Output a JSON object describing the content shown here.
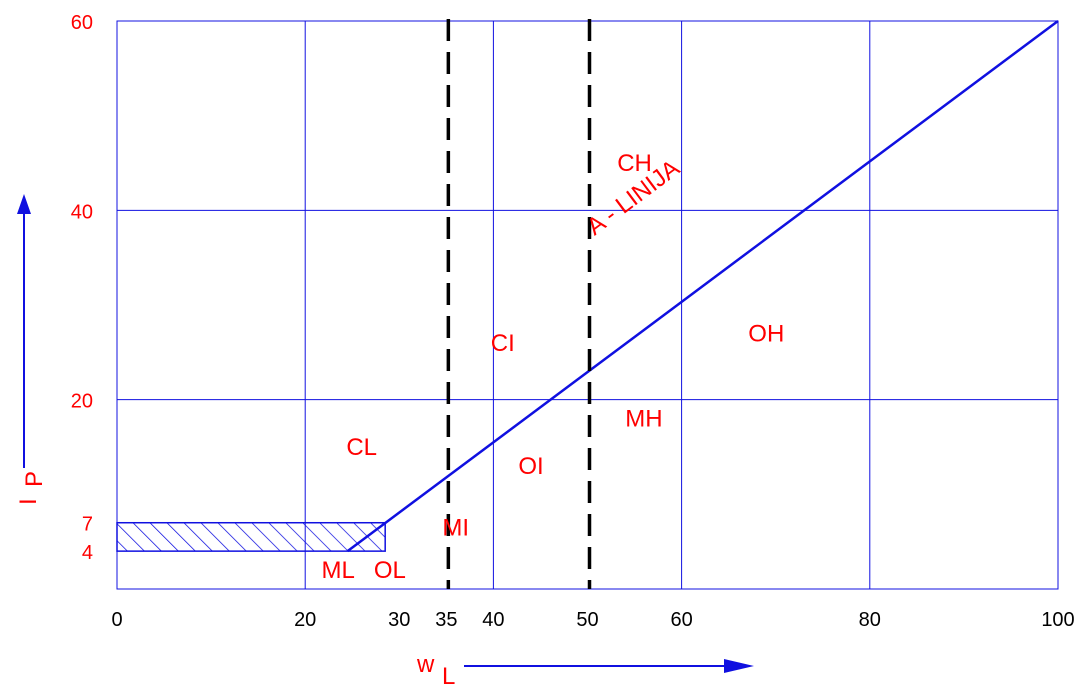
{
  "chart_data": {
    "type": "line",
    "title": "",
    "xlabel": "w",
    "xlabel_sub": "L",
    "ylabel": "I",
    "ylabel_sub": "P",
    "xlim": [
      0,
      100
    ],
    "ylim": [
      0,
      60
    ],
    "grid": true,
    "x_gridlines": [
      0,
      20,
      40,
      60,
      80,
      100
    ],
    "y_gridlines": [
      20,
      40,
      60
    ],
    "x_ticks": [
      {
        "value": 0,
        "label": "0"
      },
      {
        "value": 20,
        "label": "20"
      },
      {
        "value": 30,
        "label": "30"
      },
      {
        "value": 35,
        "label": "35"
      },
      {
        "value": 40,
        "label": "40"
      },
      {
        "value": 50,
        "label": "50"
      },
      {
        "value": 60,
        "label": "60"
      },
      {
        "value": 80,
        "label": "80"
      },
      {
        "value": 100,
        "label": "100"
      }
    ],
    "y_ticks": [
      {
        "value": 4,
        "label": "4"
      },
      {
        "value": 7,
        "label": "7"
      },
      {
        "value": 20,
        "label": "20"
      },
      {
        "value": 40,
        "label": "40"
      },
      {
        "value": 60,
        "label": "60"
      }
    ],
    "a_line": {
      "label": "A - LINIJA",
      "points": [
        [
          24.5,
          4
        ],
        [
          100,
          60
        ]
      ]
    },
    "hatched_zone": {
      "x": [
        0,
        28.5
      ],
      "y": [
        4,
        7
      ]
    },
    "dashed_verticals": [
      35,
      50
    ],
    "region_labels": [
      {
        "text": "CH",
        "x": 55,
        "y": 45
      },
      {
        "text": "CI",
        "x": 41,
        "y": 26
      },
      {
        "text": "OH",
        "x": 69,
        "y": 27
      },
      {
        "text": "MH",
        "x": 56,
        "y": 18
      },
      {
        "text": "CL",
        "x": 26,
        "y": 15
      },
      {
        "text": "OI",
        "x": 44,
        "y": 13
      },
      {
        "text": "MI",
        "x": 36,
        "y": 6.5
      },
      {
        "text": "ML",
        "x": 23.5,
        "y": 2
      },
      {
        "text": "OL",
        "x": 29,
        "y": 2
      }
    ],
    "colors": {
      "grid": "#1010e0",
      "line": "#1010e0",
      "text": "#ff0000",
      "dashed": "#000000",
      "arrow": "#1010e0"
    }
  }
}
